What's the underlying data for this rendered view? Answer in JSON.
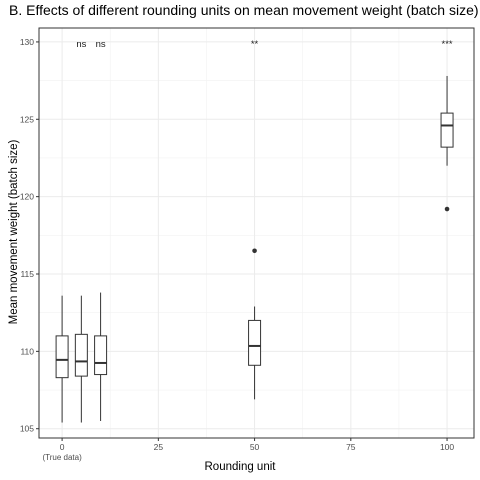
{
  "chart_data": {
    "type": "boxplot",
    "title": "B. Effects of different rounding units on mean movement weight (batch size)",
    "xlabel": "Rounding unit",
    "ylabel": "Mean movement weight (batch size)",
    "xlim": [
      -6,
      107
    ],
    "ylim": [
      104.4,
      130.9
    ],
    "x_ticks": [
      0,
      25,
      50,
      75,
      100
    ],
    "x_tick_labels": [
      "0",
      "25",
      "50",
      "75",
      "100"
    ],
    "x_sub_label": "(True data)",
    "y_ticks": [
      105,
      110,
      115,
      120,
      125,
      130
    ],
    "y_tick_labels": [
      "105",
      "110",
      "115",
      "120",
      "125",
      "130"
    ],
    "grid": true,
    "boxes": [
      {
        "x": 0,
        "whisker_low": 105.4,
        "q1": 108.3,
        "median": 109.45,
        "q3": 111.0,
        "whisker_high": 113.6,
        "outliers": []
      },
      {
        "x": 5,
        "whisker_low": 105.4,
        "q1": 108.4,
        "median": 109.35,
        "q3": 111.1,
        "whisker_high": 113.6,
        "outliers": []
      },
      {
        "x": 10,
        "whisker_low": 105.5,
        "q1": 108.5,
        "median": 109.25,
        "q3": 111.0,
        "whisker_high": 113.8,
        "outliers": []
      },
      {
        "x": 50,
        "whisker_low": 106.9,
        "q1": 109.1,
        "median": 110.35,
        "q3": 112.0,
        "whisker_high": 112.9,
        "outliers": [
          116.5
        ]
      },
      {
        "x": 100,
        "whisker_low": 122.0,
        "q1": 123.2,
        "median": 124.6,
        "q3": 125.4,
        "whisker_high": 127.8,
        "outliers": [
          119.2
        ]
      }
    ],
    "annotations": [
      {
        "x": 5,
        "text": "ns"
      },
      {
        "x": 10,
        "text": "ns"
      },
      {
        "x": 50,
        "text": "**"
      },
      {
        "x": 100,
        "text": "***"
      }
    ]
  }
}
